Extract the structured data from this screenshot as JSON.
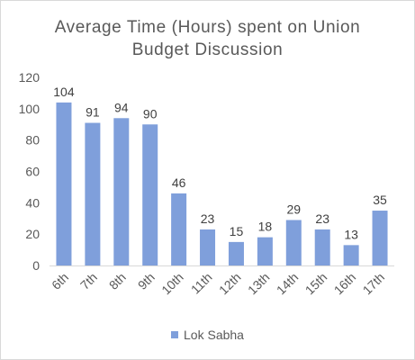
{
  "chart_data": {
    "type": "bar",
    "title_lines": [
      "Average Time (Hours) spent on Union",
      "Budget Discussion"
    ],
    "categories": [
      "6th",
      "7th",
      "8th",
      "9th",
      "10th",
      "11th",
      "12th",
      "13th",
      "14th",
      "15th",
      "16th",
      "17th"
    ],
    "series": [
      {
        "name": "Lok Sabha",
        "values": [
          104,
          91,
          94,
          90,
          46,
          23,
          15,
          18,
          29,
          23,
          13,
          35
        ],
        "color": "#7f9fdb"
      }
    ],
    "ylim": [
      0,
      120
    ],
    "yticks": [
      0,
      20,
      40,
      60,
      80,
      100,
      120
    ],
    "data_labels": true,
    "grid": false,
    "legend_position": "bottom"
  }
}
